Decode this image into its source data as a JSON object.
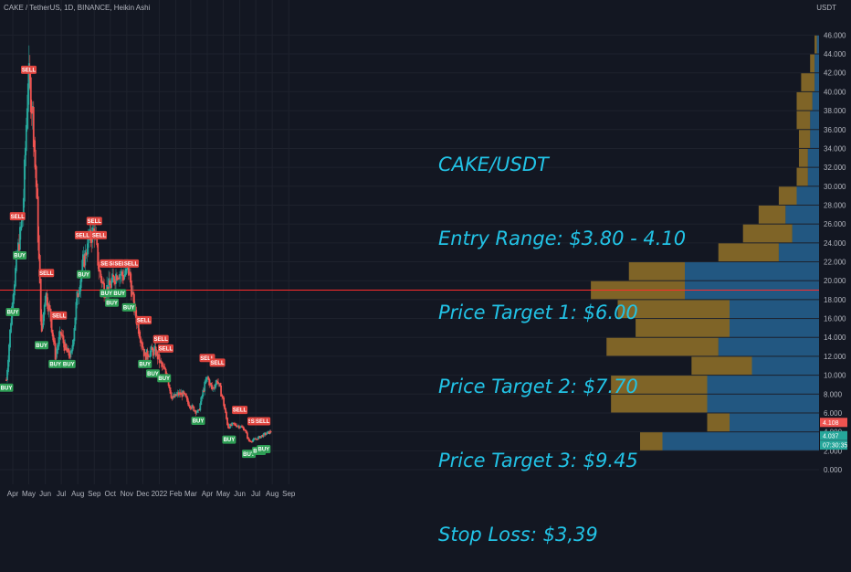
{
  "header": {
    "title": "CAKE / TetherUS, 1D, BINANCE, Heikin Ashi",
    "unit": "USDT"
  },
  "annotation": {
    "lines": [
      "CAKE/USDT",
      "Entry Range: $3.80 - 4.10",
      "Price Target 1: $6.00",
      "Price Target 2: $7.70",
      "Price Target 3: $9.45",
      "Stop Loss: $3,39"
    ]
  },
  "colors": {
    "up": "#26a69a",
    "down": "#ef5350",
    "volume_up": "#2f8ccf",
    "volume_down": "#d9a42b",
    "annotation": "#22c3e6",
    "hline": "#ff2b2b"
  },
  "chart_data": {
    "type": "candlestick",
    "ylim": [
      -1,
      46
    ],
    "y_ticks": [
      "0.000",
      "2.000",
      "4.000",
      "6.000",
      "8.000",
      "10.000",
      "12.000",
      "14.000",
      "16.000",
      "18.000",
      "20.000",
      "22.000",
      "24.000",
      "26.000",
      "28.000",
      "30.000",
      "32.000",
      "34.000",
      "36.000",
      "38.000",
      "40.000",
      "42.000",
      "44.000",
      "46.000"
    ],
    "x_ticks": [
      "Apr",
      "May",
      "Jun",
      "Jul",
      "Aug",
      "Sep",
      "Oct",
      "Nov",
      "Dec",
      "2022",
      "Feb",
      "Mar",
      "Apr",
      "May",
      "Jun",
      "Jul",
      "Aug",
      "Sep"
    ],
    "price_path": [
      [
        "2021-03-20",
        9.5
      ],
      [
        "2021-04-01",
        18.5
      ],
      [
        "2021-04-10",
        23.0
      ],
      [
        "2021-04-20",
        27.0
      ],
      [
        "2021-04-30",
        42.0
      ],
      [
        "2021-05-08",
        38.0
      ],
      [
        "2021-05-16",
        29.0
      ],
      [
        "2021-05-25",
        14.0
      ],
      [
        "2021-06-01",
        19.0
      ],
      [
        "2021-06-10",
        16.5
      ],
      [
        "2021-06-20",
        12.0
      ],
      [
        "2021-06-30",
        14.5
      ],
      [
        "2021-07-10",
        12.5
      ],
      [
        "2021-07-20",
        12.0
      ],
      [
        "2021-07-30",
        18.0
      ],
      [
        "2021-08-10",
        21.5
      ],
      [
        "2021-08-20",
        24.0
      ],
      [
        "2021-09-01",
        25.5
      ],
      [
        "2021-09-10",
        21.0
      ],
      [
        "2021-09-20",
        19.0
      ],
      [
        "2021-10-01",
        19.5
      ],
      [
        "2021-10-15",
        21.0
      ],
      [
        "2021-10-25",
        20.5
      ],
      [
        "2021-11-05",
        21.0
      ],
      [
        "2021-11-15",
        17.0
      ],
      [
        "2021-11-25",
        14.5
      ],
      [
        "2021-12-05",
        12.0
      ],
      [
        "2021-12-15",
        12.5
      ],
      [
        "2021-12-25",
        12.5
      ],
      [
        "2022-01-05",
        11.0
      ],
      [
        "2022-01-15",
        10.0
      ],
      [
        "2022-01-25",
        7.5
      ],
      [
        "2022-02-05",
        8.0
      ],
      [
        "2022-02-15",
        8.0
      ],
      [
        "2022-02-25",
        7.0
      ],
      [
        "2022-03-05",
        6.5
      ],
      [
        "2022-03-15",
        6.0
      ],
      [
        "2022-03-25",
        8.5
      ],
      [
        "2022-04-01",
        9.8
      ],
      [
        "2022-04-10",
        8.5
      ],
      [
        "2022-04-20",
        9.5
      ],
      [
        "2022-04-30",
        7.5
      ],
      [
        "2022-05-10",
        4.5
      ],
      [
        "2022-05-20",
        4.8
      ],
      [
        "2022-06-01",
        4.6
      ],
      [
        "2022-06-10",
        4.3
      ],
      [
        "2022-06-18",
        3.0
      ],
      [
        "2022-06-30",
        3.2
      ],
      [
        "2022-07-10",
        3.5
      ],
      [
        "2022-07-20",
        3.8
      ],
      [
        "2022-07-30",
        4.037
      ]
    ],
    "signals": [
      {
        "label": "BUY",
        "date": "2021-03-20",
        "price": 9.5
      },
      {
        "label": "BUY",
        "date": "2021-04-01",
        "price": 17.5
      },
      {
        "label": "SELL",
        "date": "2021-04-10",
        "price": 26.0
      },
      {
        "label": "BUY",
        "date": "2021-04-14",
        "price": 23.5
      },
      {
        "label": "SELL",
        "date": "2021-05-01",
        "price": 41.5
      },
      {
        "label": "BUY",
        "date": "2021-05-25",
        "price": 14.0
      },
      {
        "label": "SELL",
        "date": "2021-06-03",
        "price": 20.0
      },
      {
        "label": "BUY",
        "date": "2021-06-20",
        "price": 12.0
      },
      {
        "label": "SELL",
        "date": "2021-06-27",
        "price": 15.5
      },
      {
        "label": "BUY",
        "date": "2021-07-15",
        "price": 12.0
      },
      {
        "label": "SELL",
        "date": "2021-08-10",
        "price": 24.0
      },
      {
        "label": "BUY",
        "date": "2021-08-12",
        "price": 21.5
      },
      {
        "label": "SELL",
        "date": "2021-09-01",
        "price": 25.5
      },
      {
        "label": "SELL",
        "date": "2021-09-10",
        "price": 24.0
      },
      {
        "label": "BUY",
        "date": "2021-09-24",
        "price": 19.5
      },
      {
        "label": "SELL",
        "date": "2021-09-26",
        "price": 21.0
      },
      {
        "label": "BUY",
        "date": "2021-10-04",
        "price": 18.5
      },
      {
        "label": "SELL",
        "date": "2021-10-12",
        "price": 21.0
      },
      {
        "label": "BUY",
        "date": "2021-10-18",
        "price": 19.5
      },
      {
        "label": "SELL",
        "date": "2021-10-22",
        "price": 21.0
      },
      {
        "label": "BUY",
        "date": "2021-11-05",
        "price": 18.0
      },
      {
        "label": "SELL",
        "date": "2021-11-09",
        "price": 21.0
      },
      {
        "label": "SELL",
        "date": "2021-12-03",
        "price": 15.0
      },
      {
        "label": "BUY",
        "date": "2021-12-05",
        "price": 12.0
      },
      {
        "label": "BUY",
        "date": "2021-12-20",
        "price": 11.0
      },
      {
        "label": "SELL",
        "date": "2022-01-04",
        "price": 13.0
      },
      {
        "label": "BUY",
        "date": "2022-01-10",
        "price": 10.5
      },
      {
        "label": "SELL",
        "date": "2022-01-13",
        "price": 12.0
      },
      {
        "label": "BUY",
        "date": "2022-03-15",
        "price": 6.0
      },
      {
        "label": "SELL",
        "date": "2022-04-01",
        "price": 11.0
      },
      {
        "label": "SELL",
        "date": "2022-04-20",
        "price": 10.5
      },
      {
        "label": "BUY",
        "date": "2022-05-12",
        "price": 4.0
      },
      {
        "label": "SELL",
        "date": "2022-06-01",
        "price": 5.5
      },
      {
        "label": "BUY",
        "date": "2022-06-18",
        "price": 2.5
      },
      {
        "label": "SELL",
        "date": "2022-06-30",
        "price": 4.3
      },
      {
        "label": "SELL",
        "date": "2022-07-05",
        "price": 4.3
      },
      {
        "label": "BUY",
        "date": "2022-07-07",
        "price": 2.8
      },
      {
        "label": "SELL",
        "date": "2022-07-14",
        "price": 4.3
      },
      {
        "label": "BUY",
        "date": "2022-07-16",
        "price": 3.0
      }
    ],
    "hline": 19.0,
    "price_tags": [
      {
        "value": "4.108",
        "price": 5.0,
        "color": "#ef5350"
      },
      {
        "value": "4.037",
        "price": 3.6,
        "color": "#26a69a"
      },
      {
        "value": "07:30:35",
        "price": 2.6,
        "color": "#26a69a"
      }
    ],
    "volume_profile": [
      {
        "low": 2,
        "high": 4,
        "up": 0.7,
        "down": 0.1
      },
      {
        "low": 4,
        "high": 6,
        "up": 0.4,
        "down": 0.1
      },
      {
        "low": 6,
        "high": 8,
        "up": 0.5,
        "down": 0.43
      },
      {
        "low": 8,
        "high": 10,
        "up": 0.5,
        "down": 0.43
      },
      {
        "low": 10,
        "high": 12,
        "up": 0.3,
        "down": 0.27
      },
      {
        "low": 12,
        "high": 14,
        "up": 0.45,
        "down": 0.5
      },
      {
        "low": 14,
        "high": 16,
        "up": 0.4,
        "down": 0.42
      },
      {
        "low": 16,
        "high": 18,
        "up": 0.4,
        "down": 0.5
      },
      {
        "low": 18,
        "high": 20,
        "up": 0.6,
        "down": 0.42
      },
      {
        "low": 20,
        "high": 22,
        "up": 0.6,
        "down": 0.25
      },
      {
        "low": 22,
        "high": 24,
        "up": 0.18,
        "down": 0.27
      },
      {
        "low": 24,
        "high": 26,
        "up": 0.12,
        "down": 0.22
      },
      {
        "low": 26,
        "high": 28,
        "up": 0.15,
        "down": 0.12
      },
      {
        "low": 28,
        "high": 30,
        "up": 0.1,
        "down": 0.08
      },
      {
        "low": 30,
        "high": 32,
        "up": 0.05,
        "down": 0.05
      },
      {
        "low": 32,
        "high": 34,
        "up": 0.05,
        "down": 0.04
      },
      {
        "low": 34,
        "high": 36,
        "up": 0.04,
        "down": 0.05
      },
      {
        "low": 36,
        "high": 38,
        "up": 0.04,
        "down": 0.06
      },
      {
        "low": 38,
        "high": 40,
        "up": 0.03,
        "down": 0.07
      },
      {
        "low": 40,
        "high": 42,
        "up": 0.02,
        "down": 0.06
      },
      {
        "low": 42,
        "high": 44,
        "up": 0.02,
        "down": 0.02
      },
      {
        "low": 44,
        "high": 46,
        "up": 0.01,
        "down": 0.01
      }
    ]
  }
}
